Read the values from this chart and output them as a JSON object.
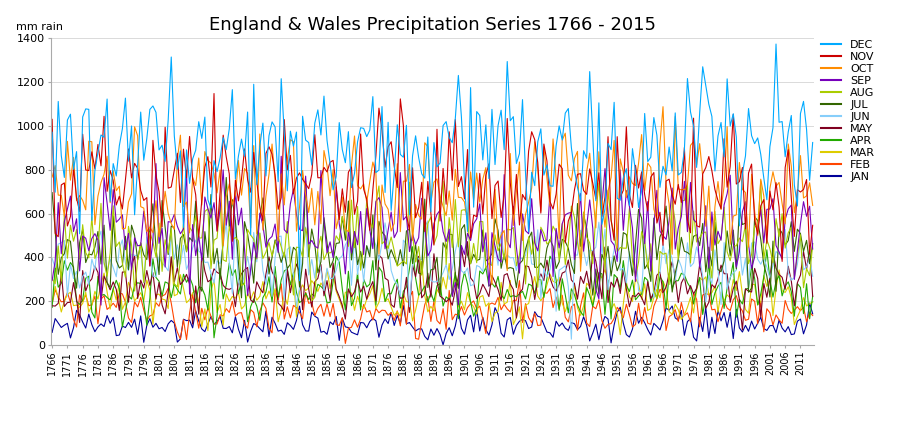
{
  "title": "England & Wales Precipitation Series 1766 - 2015",
  "year_start": 1766,
  "year_end": 2015,
  "ylim": [
    0,
    1400
  ],
  "yticks": [
    0,
    200,
    400,
    600,
    800,
    1000,
    1200,
    1400
  ],
  "xtick_years": [
    1766,
    1771,
    1776,
    1781,
    1786,
    1791,
    1796,
    1801,
    1806,
    1811,
    1816,
    1821,
    1826,
    1831,
    1836,
    1841,
    1846,
    1851,
    1856,
    1861,
    1866,
    1871,
    1876,
    1881,
    1886,
    1891,
    1896,
    1901,
    1906,
    1911,
    1916,
    1921,
    1926,
    1931,
    1936,
    1941,
    1946,
    1951,
    1956,
    1961,
    1966,
    1971,
    1976,
    1981,
    1986,
    1991,
    1996,
    2001,
    2006,
    2011
  ],
  "months_legend_order": [
    "DEC",
    "NOV",
    "OCT",
    "SEP",
    "AUG",
    "JUL",
    "JUN",
    "MAY",
    "APR",
    "MAR",
    "FEB",
    "JAN"
  ],
  "colors": {
    "DEC": "#00AAFF",
    "NOV": "#CC0000",
    "OCT": "#FF8C00",
    "SEP": "#7700BB",
    "AUG": "#AACC00",
    "JUL": "#336600",
    "JUN": "#87CEFA",
    "MAY": "#800020",
    "APR": "#22AA00",
    "MAR": "#DDCC00",
    "FEB": "#FF4500",
    "JAN": "#000099"
  },
  "means": {
    "DEC": 890,
    "NOV": 740,
    "OCT": 690,
    "SEP": 530,
    "AUG": 470,
    "JUL": 430,
    "JUN": 370,
    "MAY": 270,
    "APR": 255,
    "MAR": 210,
    "FEB": 155,
    "JAN": 90
  },
  "stds": {
    "DEC": 170,
    "NOV": 155,
    "OCT": 145,
    "SEP": 130,
    "AUG": 105,
    "JUL": 105,
    "JUN": 85,
    "MAY": 75,
    "APR": 70,
    "MAR": 60,
    "FEB": 52,
    "JAN": 38
  },
  "background_color": "#FFFFFF",
  "grid_color": "#CCCCCC",
  "title_fontsize": 13,
  "tick_fontsize": 7,
  "legend_fontsize": 8,
  "line_width": 0.8
}
